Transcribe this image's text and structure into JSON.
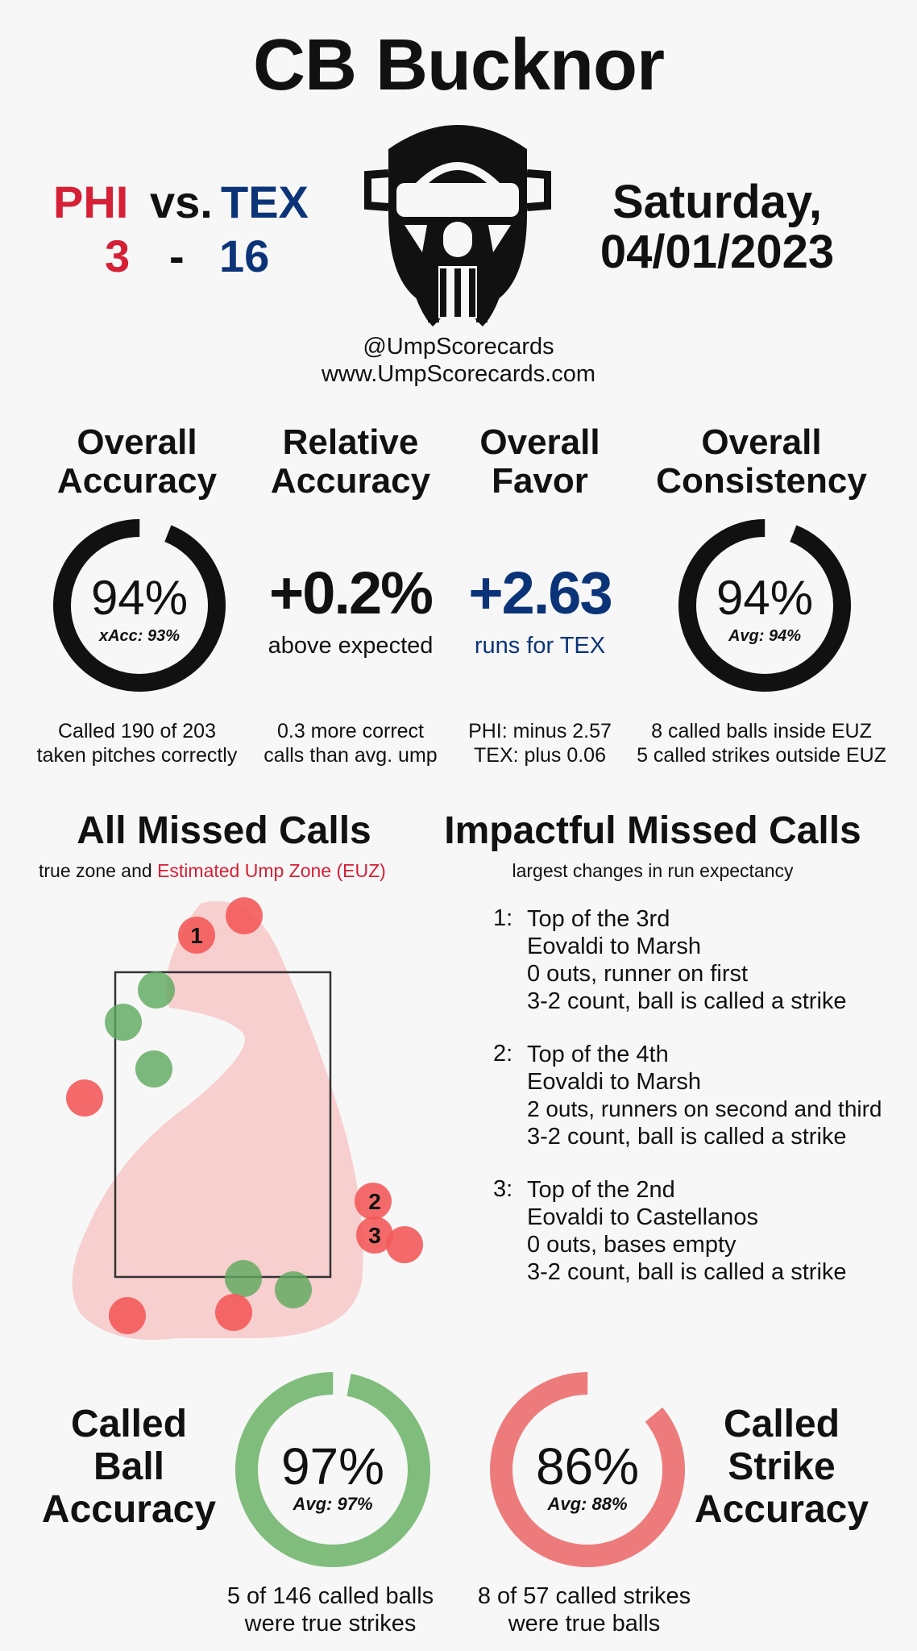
{
  "header": {
    "umpire_name": "CB Bucknor",
    "away_team": "PHI",
    "vs_label": "vs.",
    "home_team": "TEX",
    "away_score": "3",
    "score_separator": "-",
    "home_score": "16",
    "date_line1": "Saturday,",
    "date_line2": "04/01/2023",
    "handle": "@UmpScorecards",
    "website": "www.UmpScorecards.com",
    "icon": "umpire-mask-icon"
  },
  "metrics": {
    "overall_accuracy": {
      "label_line1": "Overall",
      "label_line2": "Accuracy",
      "value": "94%",
      "sub": "xAcc: 93%",
      "fraction": 0.94,
      "note_line1": "Called 190 of 203",
      "note_line2": "taken pitches correctly"
    },
    "relative_accuracy": {
      "label_line1": "Relative",
      "label_line2": "Accuracy",
      "value": "+0.2%",
      "under": "above expected",
      "note_line1": "0.3 more correct",
      "note_line2": "calls than avg. ump"
    },
    "overall_favor": {
      "label_line1": "Overall",
      "label_line2": "Favor",
      "value": "+2.63",
      "under": "runs for TEX",
      "note_line1": "PHI: minus 2.57",
      "note_line2": "TEX: plus 0.06"
    },
    "overall_consistency": {
      "label_line1": "Overall",
      "label_line2": "Consistency",
      "value": "94%",
      "sub": "Avg: 94%",
      "fraction": 0.94,
      "note_line1": "8 called balls inside EUZ",
      "note_line2": "5 called strikes outside EUZ"
    }
  },
  "missed_calls": {
    "title": "All Missed Calls",
    "subtitle_prefix": "true zone and",
    "subtitle_euz": "Estimated Ump Zone (EUZ)",
    "markers": [
      "1",
      "2",
      "3"
    ]
  },
  "impactful": {
    "title": "Impactful Missed Calls",
    "subtitle": "largest changes in run expectancy",
    "calls": [
      {
        "num": "1:",
        "inning": "Top of the 3rd",
        "matchup": "Eovaldi to Marsh",
        "situation": "0 outs, runner on first",
        "count": "3-2 count, ball is called a strike"
      },
      {
        "num": "2:",
        "inning": "Top of the 4th",
        "matchup": "Eovaldi to Marsh",
        "situation": "2 outs, runners on second and third",
        "count": "3-2 count, ball is called a strike"
      },
      {
        "num": "3:",
        "inning": "Top of the 2nd",
        "matchup": "Eovaldi to Castellanos",
        "situation": "0 outs, bases empty",
        "count": "3-2 count, ball is called a strike"
      }
    ]
  },
  "called_ball": {
    "label_line1": "Called",
    "label_line2": "Ball",
    "label_line3": "Accuracy",
    "value": "97%",
    "sub": "Avg: 97%",
    "fraction": 0.97,
    "note_line1": "5 of 146 called balls",
    "note_line2": "were true strikes",
    "color": "#80bd7c"
  },
  "called_strike": {
    "label_line1": "Called",
    "label_line2": "Strike",
    "label_line3": "Accuracy",
    "value": "86%",
    "sub": "Avg: 88%",
    "fraction": 0.86,
    "note_line1": "8 of 57 called strikes",
    "note_line2": "were true balls",
    "color": "#ee7b7b"
  },
  "colors": {
    "phi": "#d62036",
    "tex": "#0b3478",
    "missed_strike": "#f35a5a",
    "missed_ball": "#5ba85b",
    "euz_fill": "#f7c8c8"
  }
}
